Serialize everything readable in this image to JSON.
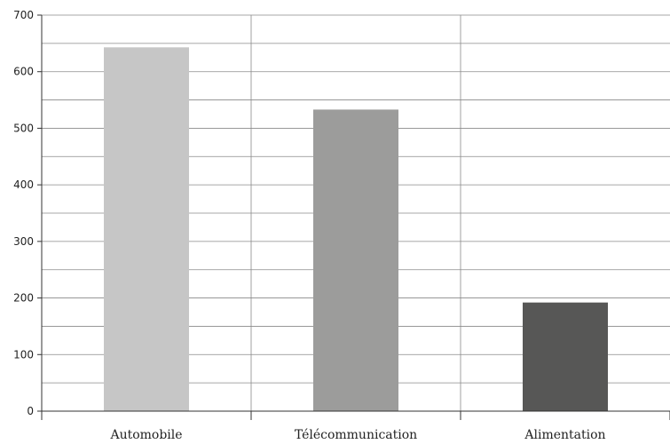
{
  "chart_data": {
    "type": "bar",
    "title": "",
    "xlabel": "",
    "ylabel": "",
    "categories": [
      "Automobile",
      "Télécommunication",
      "Alimentation"
    ],
    "values": [
      643,
      533,
      192
    ],
    "bar_colors": [
      "#c6c6c6",
      "#9c9c9b",
      "#575756"
    ],
    "ylim": [
      0,
      700
    ],
    "y_ticks": [
      0,
      100,
      200,
      300,
      400,
      500,
      600,
      700
    ],
    "y_tick_labels": [
      "0",
      "100",
      "200",
      "300",
      "400",
      "500",
      "600",
      "700"
    ],
    "grid": "horizontal major and minor, vertical category separators",
    "legend": "none"
  }
}
